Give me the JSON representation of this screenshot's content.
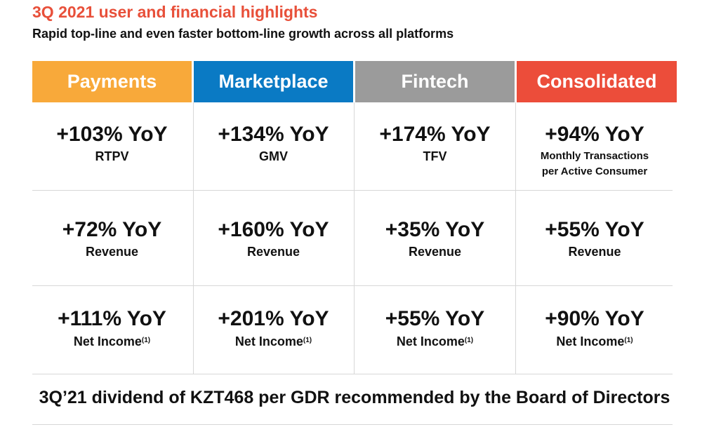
{
  "header": {
    "title": "3Q 2021 user and financial highlights",
    "subtitle": "Rapid top-line and even faster bottom-line growth across all platforms"
  },
  "columns": [
    {
      "label": "Payments",
      "color": "#f8a93a"
    },
    {
      "label": "Marketplace",
      "color": "#0a7ac4"
    },
    {
      "label": "Fintech",
      "color": "#9b9b9b"
    },
    {
      "label": "Consolidated",
      "color": "#ec4d3a"
    }
  ],
  "rows": [
    [
      {
        "value": "+103% YoY",
        "label": "RTPV"
      },
      {
        "value": "+134% YoY",
        "label": "GMV"
      },
      {
        "value": "+174% YoY",
        "label": "TFV"
      },
      {
        "value": "+94% YoY",
        "label_line1": "Monthly Transactions",
        "label_line2": "per Active Consumer"
      }
    ],
    [
      {
        "value": "+72% YoY",
        "label": "Revenue"
      },
      {
        "value": "+160% YoY",
        "label": "Revenue"
      },
      {
        "value": "+35% YoY",
        "label": "Revenue"
      },
      {
        "value": "+55% YoY",
        "label": "Revenue"
      }
    ],
    [
      {
        "value": "+111% YoY",
        "label": "Net Income",
        "note": "(1)"
      },
      {
        "value": "+201% YoY",
        "label": "Net Income",
        "note": "(1)"
      },
      {
        "value": "+55% YoY",
        "label": "Net Income",
        "note": "(1)"
      },
      {
        "value": "+90% YoY",
        "label": "Net Income",
        "note": "(1)"
      }
    ]
  ],
  "footer": {
    "text": "3Q’21 dividend of KZT468 per GDR recommended by the Board of Directors"
  }
}
